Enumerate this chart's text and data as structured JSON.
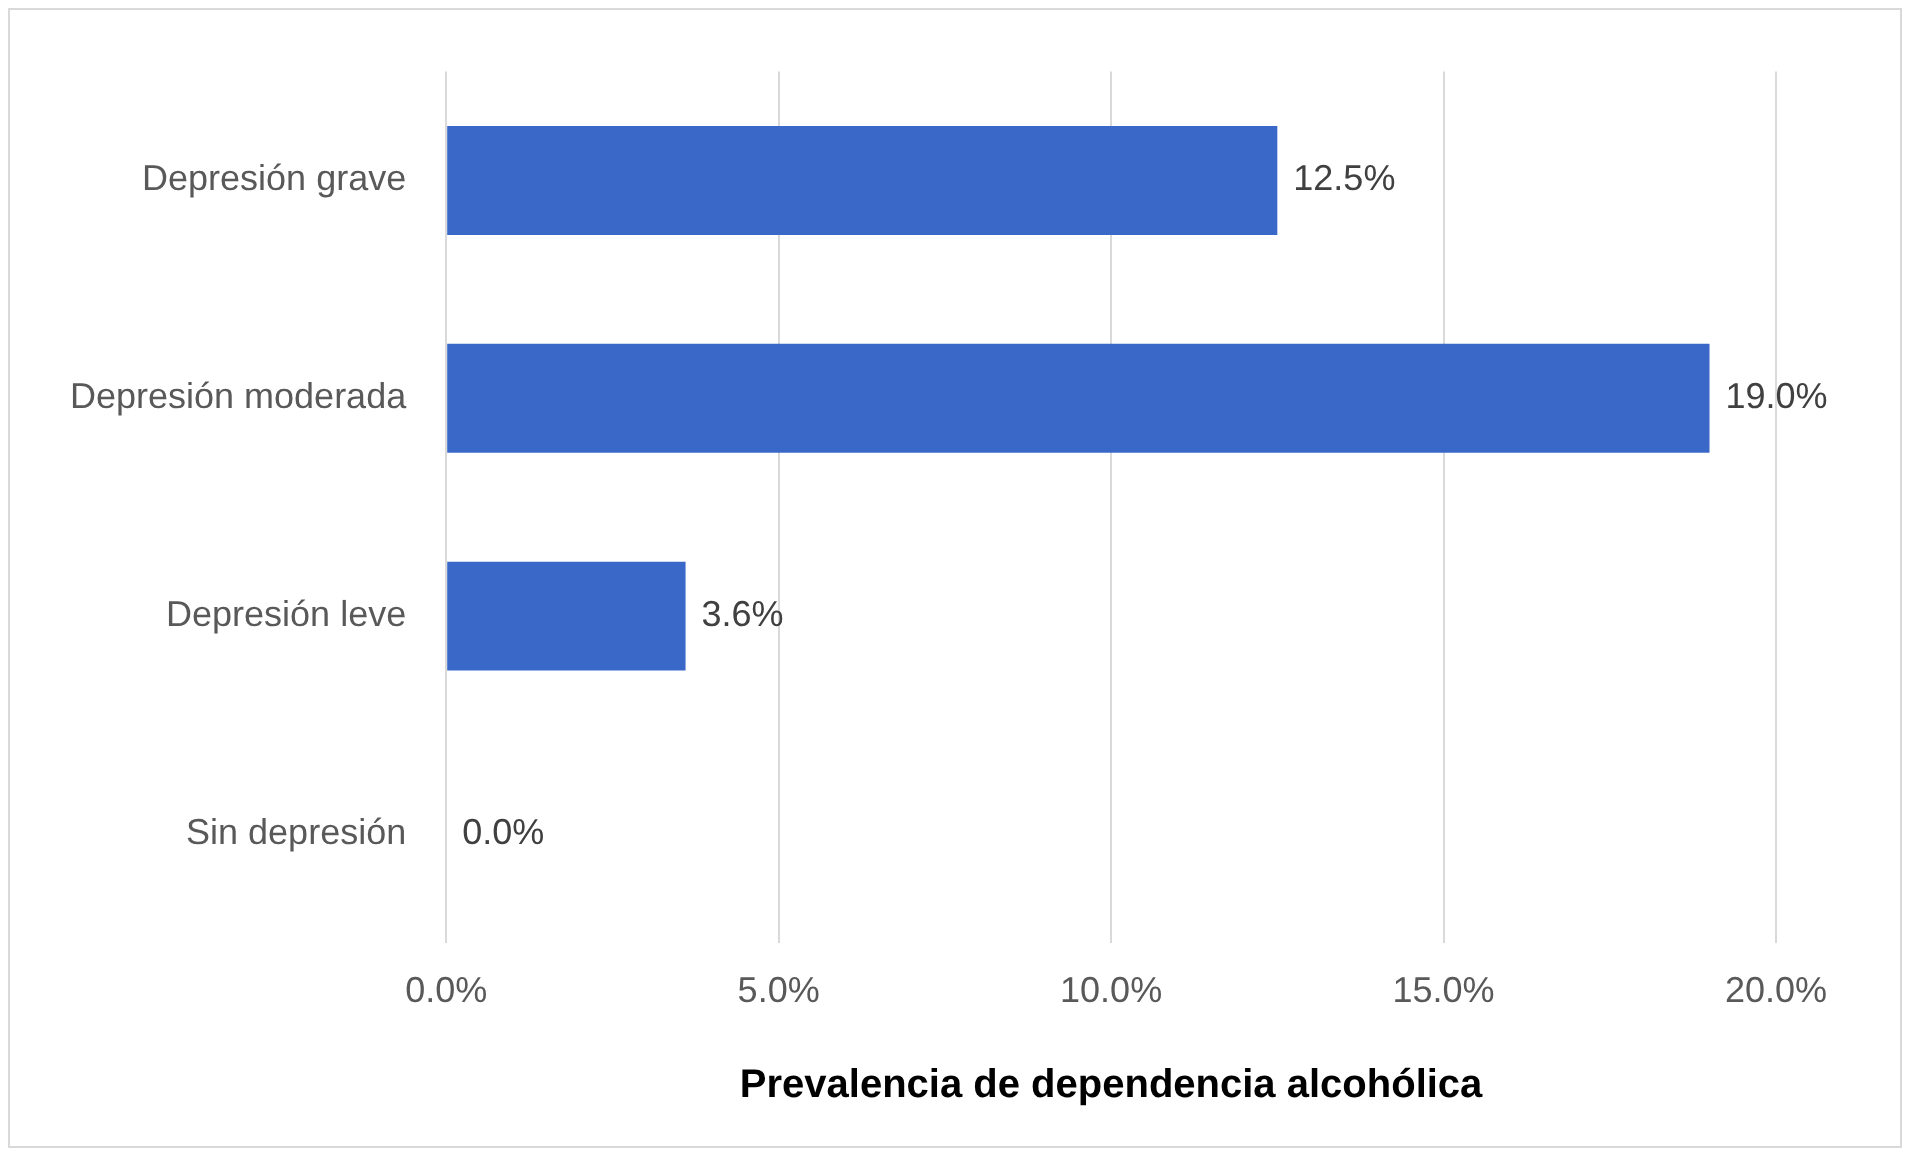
{
  "chart_data": {
    "type": "bar",
    "orientation": "horizontal",
    "xlabel": "Prevalencia de dependencia alcohólica",
    "categories": [
      "Depresión grave",
      "Depresión moderada",
      "Depresión leve",
      "Sin depresión"
    ],
    "values": [
      12.5,
      19.0,
      3.6,
      0.0
    ],
    "color": "#3a68c8",
    "value_labels": [
      "12.5%",
      "19.0%",
      "3.6%",
      "0.0%"
    ],
    "xlim": [
      0,
      20
    ],
    "xticks": [
      {
        "value": 0,
        "label": "0.0%"
      },
      {
        "value": 5,
        "label": "5.0%"
      },
      {
        "value": 10,
        "label": "10.0%"
      },
      {
        "value": 15,
        "label": "15.0%"
      },
      {
        "value": 20,
        "label": "20.0%"
      }
    ],
    "grid": "x",
    "legend": false
  }
}
